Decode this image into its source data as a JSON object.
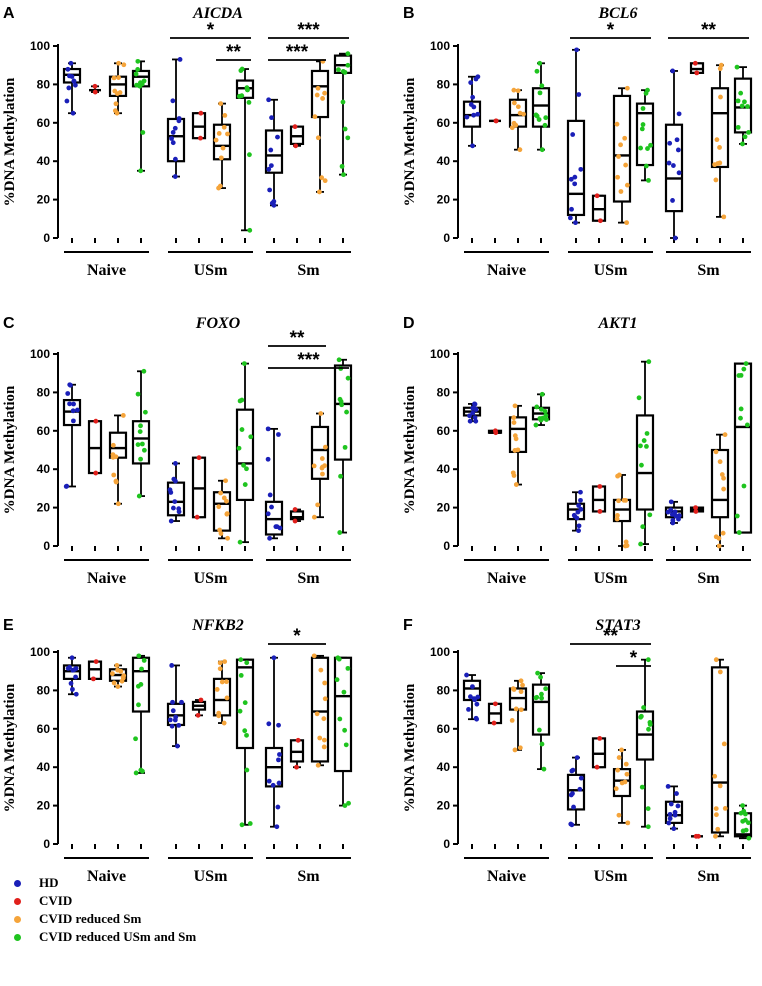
{
  "legend": [
    {
      "label": "HD",
      "color": "#1a1fb8"
    },
    {
      "label": "CVID",
      "color": "#e0201c"
    },
    {
      "label": "CVID reduced Sm",
      "color": "#f5a43a"
    },
    {
      "label": "CVID reduced USm and Sm",
      "color": "#1fc41f"
    }
  ],
  "chart_data": [
    {
      "type": "box",
      "panel": "A",
      "title": "AICDA",
      "ylabel": "%DNA Methylation",
      "ylim": [
        0,
        100
      ],
      "yticks": [
        0,
        20,
        40,
        60,
        80,
        100
      ],
      "groups": [
        "Naive",
        "USm",
        "Sm"
      ],
      "series_names": [
        "HD",
        "CVID",
        "CVID reduced Sm",
        "CVID reduced USm and Sm"
      ],
      "boxes": [
        [
          [
            65,
            81,
            85,
            88,
            91
          ],
          [
            76,
            77,
            77,
            77,
            79
          ],
          [
            65,
            74,
            80,
            84,
            91
          ],
          [
            35,
            79,
            84,
            87,
            92
          ]
        ],
        [
          [
            32,
            40,
            53,
            62,
            93
          ],
          [
            52,
            52,
            58,
            65,
            65
          ],
          [
            26,
            41,
            48,
            59,
            70
          ],
          [
            4,
            73,
            78,
            82,
            88
          ]
        ],
        [
          [
            17,
            34,
            43,
            56,
            72
          ],
          [
            48,
            49,
            53,
            58,
            58
          ],
          [
            24,
            63,
            79,
            87,
            92
          ],
          [
            33,
            86,
            90,
            95,
            96
          ]
        ]
      ],
      "significance": [
        {
          "label": "*",
          "from": "USm-HD",
          "to": "USm-CVID reduced USm and Sm"
        },
        {
          "label": "**",
          "from": "USm-CVID reduced Sm",
          "to": "USm-CVID reduced USm and Sm"
        },
        {
          "label": "***",
          "from": "Sm-HD",
          "to": "Sm-CVID reduced USm and Sm"
        },
        {
          "label": "***",
          "from": "Sm-HD",
          "to": "Sm-CVID reduced Sm"
        }
      ]
    },
    {
      "type": "box",
      "panel": "B",
      "title": "BCL6",
      "ylabel": "%DNA Methylation",
      "ylim": [
        0,
        100
      ],
      "yticks": [
        0,
        20,
        40,
        60,
        80,
        100
      ],
      "groups": [
        "Naive",
        "USm",
        "Sm"
      ],
      "series_names": [
        "HD",
        "CVID",
        "CVID reduced Sm",
        "CVID reduced USm and Sm"
      ],
      "boxes": [
        [
          [
            48,
            58,
            64,
            71,
            84
          ],
          [
            61,
            61,
            61,
            61,
            61
          ],
          [
            46,
            58,
            64,
            72,
            77
          ],
          [
            46,
            58,
            69,
            78,
            91
          ]
        ],
        [
          [
            8,
            12,
            23,
            61,
            98
          ],
          [
            9,
            9,
            15,
            22,
            22
          ],
          [
            8,
            19,
            43,
            74,
            78
          ],
          [
            30,
            38,
            65,
            70,
            77
          ]
        ],
        [
          [
            0,
            14,
            31,
            59,
            87
          ],
          [
            86,
            86,
            88,
            91,
            91
          ],
          [
            11,
            37,
            65,
            78,
            90
          ],
          [
            49,
            55,
            68,
            83,
            89
          ]
        ]
      ],
      "significance": [
        {
          "label": "*",
          "from": "USm-HD",
          "to": "USm-CVID reduced USm and Sm"
        },
        {
          "label": "**",
          "from": "Sm-HD",
          "to": "Sm-CVID reduced USm and Sm"
        }
      ]
    },
    {
      "type": "box",
      "panel": "C",
      "title": "FOXO",
      "ylabel": "%DNA Methylation",
      "ylim": [
        0,
        100
      ],
      "yticks": [
        0,
        20,
        40,
        60,
        80,
        100
      ],
      "groups": [
        "Naive",
        "USm",
        "Sm"
      ],
      "series_names": [
        "HD",
        "CVID",
        "CVID reduced Sm",
        "CVID reduced USm and Sm"
      ],
      "boxes": [
        [
          [
            31,
            63,
            70,
            76,
            84
          ],
          [
            38,
            38,
            51,
            65,
            65
          ],
          [
            22,
            46,
            51,
            59,
            68
          ],
          [
            26,
            43,
            56,
            65,
            91
          ]
        ],
        [
          [
            13,
            16,
            23,
            33,
            43
          ],
          [
            15,
            15,
            30,
            46,
            46
          ],
          [
            4,
            8,
            22,
            28,
            34
          ],
          [
            2,
            24,
            43,
            71,
            95
          ]
        ],
        [
          [
            4,
            6,
            14,
            23,
            61
          ],
          [
            13,
            14,
            15,
            18,
            19
          ],
          [
            15,
            35,
            50,
            62,
            69
          ],
          [
            7,
            45,
            74,
            94,
            97
          ]
        ]
      ],
      "significance": [
        {
          "label": "**",
          "from": "Sm-HD",
          "to": "Sm-CVID reduced Sm"
        },
        {
          "label": "***",
          "from": "Sm-HD",
          "to": "Sm-CVID reduced USm and Sm"
        }
      ]
    },
    {
      "type": "box",
      "panel": "D",
      "title": "AKT1",
      "ylabel": "%DNA Methylation",
      "ylim": [
        0,
        100
      ],
      "yticks": [
        0,
        20,
        40,
        60,
        80,
        100
      ],
      "groups": [
        "Naive",
        "USm",
        "Sm"
      ],
      "series_names": [
        "HD",
        "CVID",
        "CVID reduced Sm",
        "CVID reduced USm and Sm"
      ],
      "boxes": [
        [
          [
            65,
            68,
            70,
            72,
            74
          ],
          [
            59,
            59,
            59,
            60,
            60
          ],
          [
            32,
            49,
            61,
            67,
            73
          ],
          [
            63,
            66,
            69,
            72,
            79
          ]
        ],
        [
          [
            8,
            14,
            19,
            22,
            28
          ],
          [
            18,
            18,
            24,
            31,
            31
          ],
          [
            0,
            13,
            19,
            24,
            37
          ],
          [
            1,
            19,
            38,
            68,
            96
          ]
        ],
        [
          [
            12,
            15,
            18,
            20,
            23
          ],
          [
            18,
            18,
            19,
            20,
            20
          ],
          [
            0,
            15,
            24,
            50,
            58
          ],
          [
            7,
            7,
            62,
            95,
            95
          ]
        ]
      ],
      "significance": []
    },
    {
      "type": "box",
      "panel": "E",
      "title": "NFKB2",
      "ylabel": "%DNA Methylation",
      "ylim": [
        0,
        100
      ],
      "yticks": [
        0,
        20,
        40,
        60,
        80,
        100
      ],
      "groups": [
        "Naive",
        "USm",
        "Sm"
      ],
      "series_names": [
        "HD",
        "CVID",
        "CVID reduced Sm",
        "CVID reduced USm and Sm"
      ],
      "boxes": [
        [
          [
            78,
            86,
            90,
            93,
            97
          ],
          [
            86,
            86,
            91,
            95,
            95
          ],
          [
            82,
            85,
            88,
            91,
            93
          ],
          [
            37,
            69,
            90,
            97,
            98
          ]
        ],
        [
          [
            51,
            62,
            67,
            73,
            93
          ],
          [
            67,
            70,
            72,
            74,
            75
          ],
          [
            63,
            67,
            75,
            86,
            95
          ],
          [
            10,
            50,
            92,
            96,
            96
          ]
        ],
        [
          [
            9,
            30,
            40,
            50,
            97
          ],
          [
            40,
            43,
            48,
            54,
            54
          ],
          [
            41,
            43,
            69,
            97,
            98
          ],
          [
            20,
            38,
            77,
            97,
            97
          ]
        ]
      ],
      "significance": [
        {
          "label": "*",
          "from": "Sm-HD",
          "to": "Sm-CVID reduced Sm"
        }
      ]
    },
    {
      "type": "box",
      "panel": "F",
      "title": "STAT3",
      "ylabel": "%DNA Methylation",
      "ylim": [
        0,
        100
      ],
      "yticks": [
        0,
        20,
        40,
        60,
        80,
        100
      ],
      "groups": [
        "Naive",
        "USm",
        "Sm"
      ],
      "series_names": [
        "HD",
        "CVID",
        "CVID reduced Sm",
        "CVID reduced USm and Sm"
      ],
      "boxes": [
        [
          [
            65,
            75,
            81,
            85,
            88
          ],
          [
            63,
            63,
            68,
            73,
            73
          ],
          [
            49,
            70,
            76,
            81,
            85
          ],
          [
            39,
            57,
            74,
            83,
            89
          ]
        ],
        [
          [
            10,
            18,
            28,
            36,
            45
          ],
          [
            40,
            40,
            47,
            55,
            55
          ],
          [
            11,
            25,
            33,
            39,
            49
          ],
          [
            9,
            44,
            57,
            69,
            96
          ]
        ],
        [
          [
            8,
            11,
            15,
            22,
            30
          ],
          [
            4,
            4,
            4,
            4,
            4
          ],
          [
            4,
            6,
            32,
            92,
            96
          ],
          [
            3,
            4,
            5,
            16,
            20
          ]
        ]
      ],
      "significance": [
        {
          "label": "**",
          "from": "USm-HD",
          "to": "USm-CVID reduced USm and Sm"
        },
        {
          "label": "*",
          "from": "USm-CVID reduced Sm",
          "to": "USm-CVID reduced USm and Sm"
        }
      ]
    }
  ]
}
